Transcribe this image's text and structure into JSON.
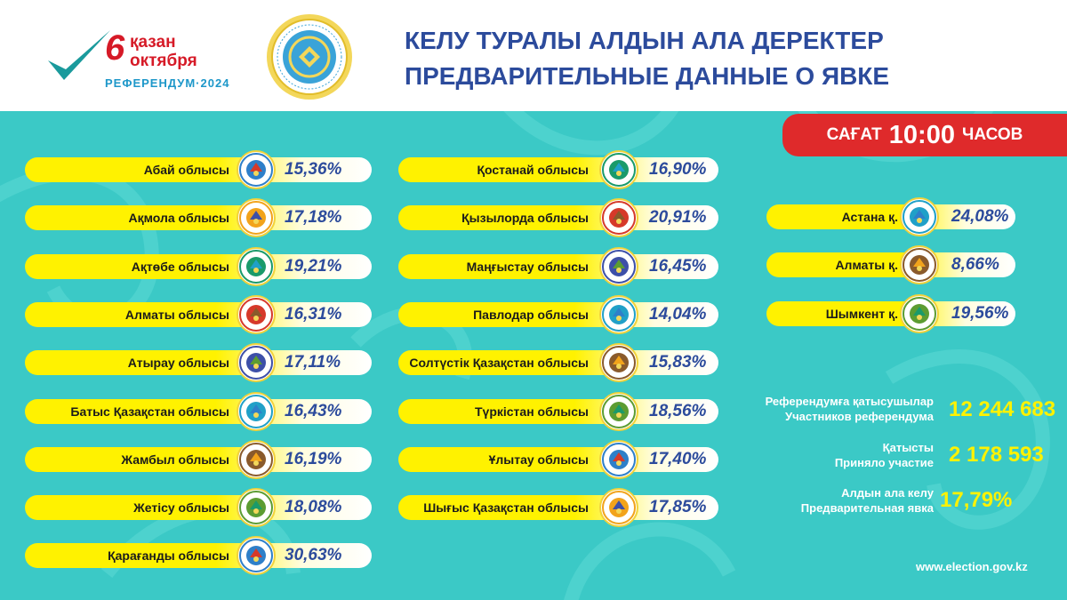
{
  "header": {
    "logo": {
      "day": "6",
      "month_kz": "қазан",
      "month_ru": "октября",
      "caption": "РЕФЕРЕНДУМ·2024"
    },
    "seal_icon": "election-commission-seal",
    "title_kz": "КЕЛУ ТУРАЛЫ АЛДЫН АЛА ДЕРЕКТЕР",
    "title_ru": "ПРЕДВАРИТЕЛЬНЫЕ ДАННЫЕ О ЯВКЕ"
  },
  "time_badge": {
    "prefix": "САҒАТ",
    "time": "10:00",
    "suffix": "ЧАСОВ",
    "color": "#df2a2b"
  },
  "colors": {
    "panel": "#3bc9c6",
    "pill": "#fff200",
    "value_text": "#2c4b9c",
    "stat_value": "#fff200"
  },
  "regions_col1": [
    {
      "name": "Абай облысы",
      "value": "15,36%",
      "emblem": "abai-emblem"
    },
    {
      "name": "Ақмола облысы",
      "value": "17,18%",
      "emblem": "akmola-emblem"
    },
    {
      "name": "Ақтөбе облысы",
      "value": "19,21%",
      "emblem": "aktobe-emblem"
    },
    {
      "name": "Алматы облысы",
      "value": "16,31%",
      "emblem": "almaty-region-emblem"
    },
    {
      "name": "Атырау облысы",
      "value": "17,11%",
      "emblem": "atyrau-emblem"
    },
    {
      "name": "Батыс Қазақстан облысы",
      "value": "16,43%",
      "emblem": "west-kazakhstan-emblem"
    },
    {
      "name": "Жамбыл облысы",
      "value": "16,19%",
      "emblem": "zhambyl-emblem"
    },
    {
      "name": "Жетісу облысы",
      "value": "18,08%",
      "emblem": "zhetisu-emblem"
    },
    {
      "name": "Қарағанды облысы",
      "value": "30,63%",
      "emblem": "karaganda-emblem"
    }
  ],
  "regions_col2": [
    {
      "name": "Қостанай облысы",
      "value": "16,90%",
      "emblem": "kostanay-emblem"
    },
    {
      "name": "Қызылорда облысы",
      "value": "20,91%",
      "emblem": "kyzylorda-emblem"
    },
    {
      "name": "Маңғыстау облысы",
      "value": "16,45%",
      "emblem": "mangystau-emblem"
    },
    {
      "name": "Павлодар облысы",
      "value": "14,04%",
      "emblem": "pavlodar-emblem"
    },
    {
      "name": "Солтүстік Қазақстан облысы",
      "value": "15,83%",
      "emblem": "north-kazakhstan-emblem"
    },
    {
      "name": "Түркістан облысы",
      "value": "18,56%",
      "emblem": "turkistan-emblem"
    },
    {
      "name": "Ұлытау облысы",
      "value": "17,40%",
      "emblem": "ulytau-emblem"
    },
    {
      "name": "Шығыс Қазақстан облысы",
      "value": "17,85%",
      "emblem": "east-kazakhstan-emblem"
    }
  ],
  "cities": [
    {
      "name": "Астана қ.",
      "value": "24,08%",
      "emblem": "astana-emblem"
    },
    {
      "name": "Алматы қ.",
      "value": "8,66%",
      "emblem": "almaty-city-emblem"
    },
    {
      "name": "Шымкент қ.",
      "value": "19,56%",
      "emblem": "shymkent-emblem"
    }
  ],
  "stats": {
    "participants_kz": "Референдумға қатысушылар",
    "participants_ru": "Участников референдума",
    "participants_value": "12 244 683",
    "voted_kz": "Қатысты",
    "voted_ru": "Приняло участие",
    "voted_value": "2 178 593",
    "turnout_kz": "Алдын ала келу",
    "turnout_ru": "Предварительная явка",
    "turnout_value": "17,79%"
  },
  "website": "www.election.gov.kz"
}
